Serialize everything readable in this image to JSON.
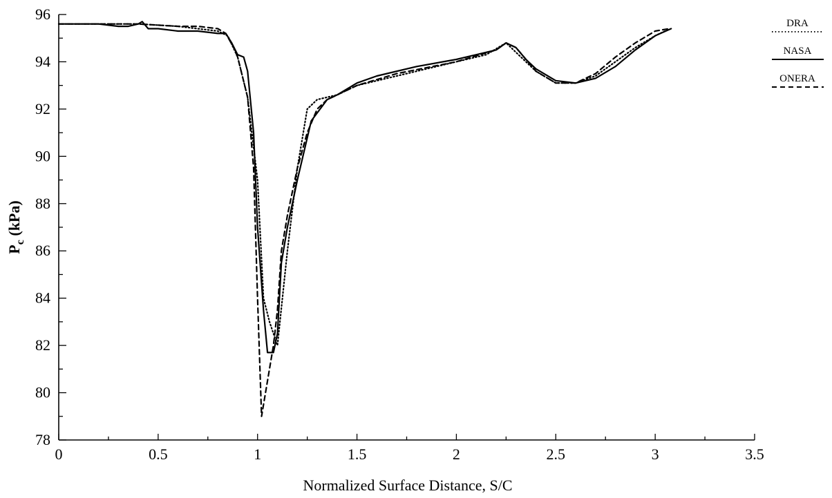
{
  "chart_data": {
    "type": "line",
    "title": "",
    "xlabel": "Normalized Surface Distance, S/C",
    "ylabel": {
      "base": "P",
      "subscript": "c",
      "rest": " (kPa)"
    },
    "xlim": [
      0,
      3.5
    ],
    "ylim": [
      78,
      96
    ],
    "x_ticks": [
      0,
      0.5,
      1,
      1.5,
      2,
      2.5,
      3,
      3.5
    ],
    "x_tick_labels": [
      "0",
      "0.5",
      "1",
      "1.5",
      "2",
      "2.5",
      "3",
      "3.5"
    ],
    "y_ticks": [
      78,
      80,
      82,
      84,
      86,
      88,
      90,
      92,
      94,
      96
    ],
    "y_tick_labels": [
      "78",
      "80",
      "82",
      "84",
      "86",
      "88",
      "90",
      "92",
      "94",
      "96"
    ],
    "grid": false,
    "legend_position": "top-right, outside plot",
    "series": [
      {
        "name": "DRA",
        "line_style": "dotted",
        "x": [
          0,
          0.2,
          0.4,
          0.6,
          0.8,
          0.85,
          0.9,
          0.95,
          1.0,
          1.03,
          1.06,
          1.1,
          1.15,
          1.2,
          1.25,
          1.3,
          1.4,
          1.5,
          1.7,
          2.0,
          2.15,
          2.25,
          2.3,
          2.4,
          2.5,
          2.6,
          2.7,
          2.8,
          2.9,
          3.0,
          3.05
        ],
        "y": [
          95.6,
          95.6,
          95.6,
          95.5,
          95.3,
          95.1,
          94.2,
          92.5,
          89.0,
          84.0,
          83.0,
          82.0,
          86.0,
          89.5,
          92.0,
          92.4,
          92.6,
          93.0,
          93.4,
          94.0,
          94.3,
          94.8,
          94.4,
          93.6,
          93.1,
          93.1,
          93.4,
          94.0,
          94.6,
          95.1,
          95.3
        ]
      },
      {
        "name": "NASA",
        "line_style": "solid",
        "x": [
          0,
          0.1,
          0.2,
          0.3,
          0.35,
          0.4,
          0.42,
          0.45,
          0.5,
          0.6,
          0.7,
          0.8,
          0.84,
          0.87,
          0.9,
          0.93,
          0.95,
          0.98,
          1.0,
          1.03,
          1.05,
          1.08,
          1.1,
          1.12,
          1.15,
          1.2,
          1.27,
          1.35,
          1.4,
          1.5,
          1.6,
          1.8,
          2.0,
          2.1,
          2.2,
          2.25,
          2.3,
          2.35,
          2.4,
          2.5,
          2.6,
          2.7,
          2.8,
          2.9,
          3.0,
          3.08
        ],
        "y": [
          95.6,
          95.6,
          95.6,
          95.5,
          95.5,
          95.6,
          95.7,
          95.4,
          95.4,
          95.3,
          95.3,
          95.2,
          95.2,
          94.8,
          94.3,
          94.2,
          93.6,
          91.0,
          87.0,
          83.5,
          81.7,
          81.7,
          82.5,
          85.5,
          87.0,
          89.0,
          91.5,
          92.4,
          92.6,
          93.1,
          93.4,
          93.8,
          94.1,
          94.3,
          94.5,
          94.8,
          94.6,
          94.1,
          93.7,
          93.2,
          93.1,
          93.3,
          93.8,
          94.5,
          95.1,
          95.4
        ]
      },
      {
        "name": "ONERA",
        "line_style": "dashed",
        "x": [
          0,
          0.2,
          0.4,
          0.6,
          0.7,
          0.8,
          0.84,
          0.88,
          0.9,
          0.95,
          0.98,
          1.0,
          1.02,
          1.05,
          1.08,
          1.1,
          1.12,
          1.15,
          1.2,
          1.25,
          1.3,
          1.35,
          1.4,
          1.5,
          1.7,
          2.0,
          2.2,
          2.25,
          2.3,
          2.4,
          2.5,
          2.6,
          2.7,
          2.8,
          2.9,
          3.0,
          3.07
        ],
        "y": [
          95.6,
          95.6,
          95.6,
          95.5,
          95.5,
          95.4,
          95.2,
          94.6,
          94.2,
          92.5,
          89.5,
          84.0,
          79.0,
          80.5,
          82.0,
          83.5,
          86.0,
          87.5,
          89.5,
          91.0,
          92.0,
          92.4,
          92.6,
          93.0,
          93.5,
          94.0,
          94.5,
          94.8,
          94.6,
          93.6,
          93.1,
          93.1,
          93.5,
          94.2,
          94.8,
          95.3,
          95.4
        ]
      }
    ]
  }
}
